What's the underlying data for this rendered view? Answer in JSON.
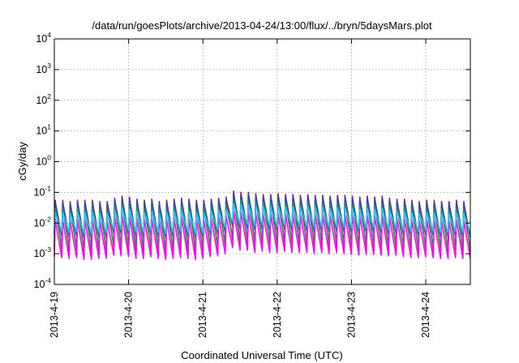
{
  "chart_data": {
    "type": "line",
    "title": "/data/run/goesPlots/archive/2013-04-24/13:00/flux/../bryn/5daysMars.plot",
    "xlabel": "Coordinated Universal Time (UTC)",
    "ylabel": "cGy/day",
    "yscale": "log",
    "ylim": [
      0.0001,
      10000
    ],
    "xlim": [
      0,
      5.6
    ],
    "grid": true,
    "x_ticks": [
      {
        "x": 0,
        "label": "2013-4-19"
      },
      {
        "x": 1,
        "label": "2013-4-20"
      },
      {
        "x": 2,
        "label": "2013-4-21"
      },
      {
        "x": 3,
        "label": "2013-4-22"
      },
      {
        "x": 4,
        "label": "2013-4-23"
      },
      {
        "x": 5,
        "label": "2013-4-24"
      }
    ],
    "y_ticks": [
      {
        "exp": -4,
        "base": "10",
        "power": "-4"
      },
      {
        "exp": -3,
        "base": "10",
        "power": "-3"
      },
      {
        "exp": -2,
        "base": "10",
        "power": "-2"
      },
      {
        "exp": -1,
        "base": "10",
        "power": "-1"
      },
      {
        "exp": 0,
        "base": "10",
        "power": "0"
      },
      {
        "exp": 1,
        "base": "10",
        "power": "1"
      },
      {
        "exp": 2,
        "base": "10",
        "power": "2"
      },
      {
        "exp": 3,
        "base": "10",
        "power": "3"
      },
      {
        "exp": 4,
        "base": "10",
        "power": "4"
      }
    ],
    "series": [
      {
        "color": "#ff0000",
        "peaks": [
          0.055,
          0.055,
          0.05,
          0.055,
          0.055,
          0.055,
          0.05,
          0.05,
          0.065,
          0.075,
          0.07,
          0.06,
          0.055,
          0.06,
          0.05,
          0.055,
          0.06,
          0.065,
          0.06,
          0.055,
          0.055,
          0.06,
          0.065,
          0.07,
          0.11,
          0.1,
          0.1,
          0.09,
          0.085,
          0.085,
          0.09,
          0.085,
          0.085,
          0.08,
          0.085,
          0.08,
          0.08,
          0.075,
          0.08,
          0.08,
          0.075,
          0.07,
          0.075,
          0.07,
          0.075,
          0.065,
          0.06,
          0.06,
          0.055,
          0.05,
          0.055,
          0.055,
          0.05,
          0.05,
          0.055,
          0.05
        ],
        "troughs": [
          0.0014,
          0.0013,
          0.0012,
          0.0013,
          0.0011,
          0.0011,
          0.0012,
          0.0012,
          0.0016,
          0.0015,
          0.0014,
          0.0012,
          0.0012,
          0.0014,
          0.0012,
          0.0011,
          0.0012,
          0.0013,
          0.0012,
          0.0011,
          0.0012,
          0.0014,
          0.0015,
          0.0018,
          0.0028,
          0.0022,
          0.0022,
          0.002,
          0.0021,
          0.002,
          0.0019,
          0.0021,
          0.002,
          0.0019,
          0.0019,
          0.0018,
          0.0019,
          0.0018,
          0.0019,
          0.0018,
          0.0017,
          0.0016,
          0.0017,
          0.0017,
          0.0016,
          0.0015,
          0.0016,
          0.0014,
          0.0013,
          0.0013,
          0.0014,
          0.0013,
          0.0012,
          0.0012,
          0.0013,
          0.0012
        ]
      },
      {
        "color": "#2e4ab8",
        "peaks": [
          0.05,
          0.05,
          0.045,
          0.05,
          0.05,
          0.05,
          0.045,
          0.045,
          0.06,
          0.068,
          0.063,
          0.055,
          0.05,
          0.055,
          0.045,
          0.05,
          0.055,
          0.06,
          0.055,
          0.05,
          0.05,
          0.055,
          0.06,
          0.065,
          0.095,
          0.09,
          0.09,
          0.082,
          0.078,
          0.078,
          0.082,
          0.078,
          0.078,
          0.073,
          0.078,
          0.073,
          0.073,
          0.068,
          0.073,
          0.073,
          0.068,
          0.063,
          0.068,
          0.063,
          0.068,
          0.06,
          0.055,
          0.055,
          0.05,
          0.045,
          0.05,
          0.05,
          0.045,
          0.045,
          0.05,
          0.045
        ],
        "troughs": [
          0.004,
          0.0037,
          0.0034,
          0.0037,
          0.0031,
          0.0031,
          0.0034,
          0.0034,
          0.0045,
          0.0042,
          0.004,
          0.0034,
          0.0034,
          0.004,
          0.0034,
          0.0031,
          0.0034,
          0.0037,
          0.0034,
          0.0031,
          0.0034,
          0.004,
          0.0042,
          0.005,
          0.0078,
          0.0062,
          0.0062,
          0.0056,
          0.0059,
          0.0056,
          0.0053,
          0.0059,
          0.0056,
          0.0053,
          0.0053,
          0.005,
          0.0053,
          0.005,
          0.0053,
          0.005,
          0.0048,
          0.0045,
          0.0048,
          0.0048,
          0.0045,
          0.0042,
          0.0045,
          0.004,
          0.0037,
          0.0037,
          0.004,
          0.0037,
          0.0034,
          0.0034,
          0.0037,
          0.0034
        ]
      },
      {
        "color": "#2a8f55",
        "peaks": [
          0.03,
          0.03,
          0.027,
          0.03,
          0.03,
          0.03,
          0.027,
          0.027,
          0.036,
          0.041,
          0.038,
          0.033,
          0.03,
          0.033,
          0.027,
          0.03,
          0.033,
          0.036,
          0.033,
          0.03,
          0.03,
          0.033,
          0.036,
          0.039,
          0.057,
          0.054,
          0.054,
          0.049,
          0.047,
          0.047,
          0.049,
          0.047,
          0.047,
          0.044,
          0.047,
          0.044,
          0.044,
          0.041,
          0.044,
          0.044,
          0.041,
          0.038,
          0.041,
          0.038,
          0.041,
          0.036,
          0.033,
          0.033,
          0.03,
          0.027,
          0.03,
          0.03,
          0.027,
          0.027,
          0.03,
          0.027
        ],
        "troughs": [
          0.0017,
          0.0016,
          0.0015,
          0.0016,
          0.0014,
          0.0014,
          0.0015,
          0.0015,
          0.002,
          0.0018,
          0.0017,
          0.0015,
          0.0015,
          0.0017,
          0.0015,
          0.0014,
          0.0015,
          0.0016,
          0.0015,
          0.0014,
          0.0015,
          0.0017,
          0.0018,
          0.0022,
          0.0034,
          0.0027,
          0.0027,
          0.0024,
          0.0026,
          0.0024,
          0.0023,
          0.0026,
          0.0024,
          0.0023,
          0.0023,
          0.0022,
          0.0023,
          0.0022,
          0.0023,
          0.0022,
          0.0021,
          0.002,
          0.0021,
          0.0021,
          0.002,
          0.0018,
          0.002,
          0.0017,
          0.0016,
          0.0016,
          0.0017,
          0.0016,
          0.0015,
          0.0015,
          0.0016,
          0.0015
        ]
      },
      {
        "color": "#ff00ff",
        "peaks": [
          0.013,
          0.013,
          0.012,
          0.013,
          0.013,
          0.013,
          0.012,
          0.012,
          0.016,
          0.018,
          0.017,
          0.014,
          0.013,
          0.014,
          0.012,
          0.013,
          0.014,
          0.016,
          0.014,
          0.013,
          0.013,
          0.014,
          0.016,
          0.017,
          0.025,
          0.023,
          0.023,
          0.021,
          0.02,
          0.02,
          0.021,
          0.02,
          0.02,
          0.019,
          0.02,
          0.019,
          0.019,
          0.018,
          0.019,
          0.019,
          0.018,
          0.017,
          0.018,
          0.017,
          0.018,
          0.016,
          0.014,
          0.014,
          0.013,
          0.012,
          0.013,
          0.013,
          0.012,
          0.012,
          0.013,
          0.012
        ],
        "troughs": [
          0.0008,
          0.00075,
          0.0007,
          0.00075,
          0.00065,
          0.00065,
          0.0007,
          0.0007,
          0.0009,
          0.00085,
          0.0008,
          0.0007,
          0.0007,
          0.0008,
          0.0007,
          0.00065,
          0.0007,
          0.00075,
          0.0007,
          0.00065,
          0.0007,
          0.0008,
          0.00085,
          0.001,
          0.0016,
          0.0013,
          0.0013,
          0.0011,
          0.0012,
          0.0011,
          0.0011,
          0.0012,
          0.0011,
          0.0011,
          0.0011,
          0.001,
          0.0011,
          0.001,
          0.0011,
          0.001,
          0.00095,
          0.0009,
          0.00095,
          0.00095,
          0.0009,
          0.00085,
          0.0009,
          0.0008,
          0.00075,
          0.00075,
          0.0008,
          0.00075,
          0.0007,
          0.0007,
          0.00075,
          0.0007
        ]
      },
      {
        "color": "#20c8e6",
        "peaks": [
          0.022,
          0.022,
          0.02,
          0.022,
          0.022,
          0.022,
          0.02,
          0.02,
          0.026,
          0.03,
          0.028,
          0.024,
          0.022,
          0.024,
          0.02,
          0.022,
          0.024,
          0.026,
          0.024,
          0.022,
          0.022,
          0.024,
          0.026,
          0.028,
          0.042,
          0.04,
          0.04,
          0.036,
          0.034,
          0.034,
          0.036,
          0.034,
          0.034,
          0.032,
          0.034,
          0.032,
          0.032,
          0.03,
          0.032,
          0.032,
          0.03,
          0.028,
          0.03,
          0.028,
          0.03,
          0.026,
          0.024,
          0.024,
          0.022,
          0.02,
          0.022,
          0.022,
          0.02,
          0.02,
          0.022,
          0.02
        ],
        "troughs": [
          0.0058,
          0.0054,
          0.005,
          0.0054,
          0.0046,
          0.0046,
          0.005,
          0.005,
          0.0066,
          0.0062,
          0.0058,
          0.005,
          0.005,
          0.0058,
          0.005,
          0.0046,
          0.005,
          0.0054,
          0.005,
          0.0046,
          0.005,
          0.0058,
          0.0062,
          0.0074,
          0.0115,
          0.0092,
          0.0092,
          0.0082,
          0.0087,
          0.0082,
          0.0078,
          0.0087,
          0.0082,
          0.0078,
          0.0078,
          0.0074,
          0.0078,
          0.0074,
          0.0078,
          0.0074,
          0.007,
          0.0066,
          0.007,
          0.007,
          0.0066,
          0.0062,
          0.0066,
          0.0058,
          0.0054,
          0.0054,
          0.0058,
          0.0054,
          0.005,
          0.005,
          0.0054,
          0.005
        ]
      }
    ]
  }
}
